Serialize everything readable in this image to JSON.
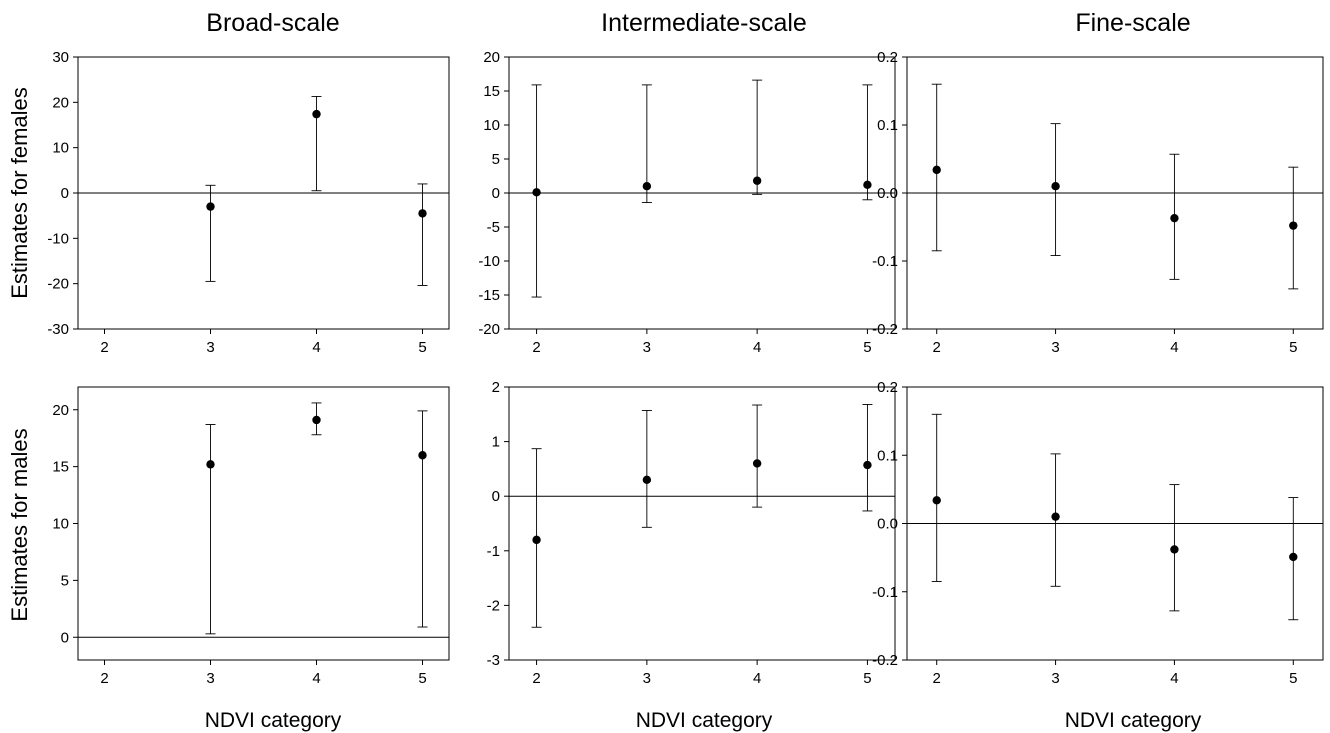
{
  "figure": {
    "column_titles": [
      "Broad-scale",
      "Intermediate-scale",
      "Fine-scale"
    ],
    "row_labels": [
      "Estimates for females",
      "Estimates for males"
    ],
    "x_axis_title": "NDVI category"
  },
  "chart_data": [
    {
      "type": "scatter",
      "title": "Broad-scale",
      "xlabel": "",
      "ylabel": "Estimates for females",
      "xlim": [
        1.75,
        5.25
      ],
      "ylim": [
        -30,
        30
      ],
      "xticks": [
        2,
        3,
        4,
        5
      ],
      "yticks": [
        -30,
        -20,
        -10,
        0,
        10,
        20,
        30
      ],
      "reference_line": 0,
      "grid": false,
      "points": [
        {
          "x": 3,
          "y": -3.0,
          "lower": -19.5,
          "upper": 1.7
        },
        {
          "x": 4,
          "y": 17.4,
          "lower": 0.5,
          "upper": 21.3
        },
        {
          "x": 5,
          "y": -4.5,
          "lower": -20.4,
          "upper": 2.0
        }
      ]
    },
    {
      "type": "scatter",
      "title": "Intermediate-scale",
      "xlabel": "",
      "ylabel": "",
      "xlim": [
        1.75,
        5.25
      ],
      "ylim": [
        -20,
        20
      ],
      "xticks": [
        2,
        3,
        4,
        5
      ],
      "yticks": [
        -20,
        -15,
        -10,
        -5,
        0,
        5,
        10,
        15,
        20
      ],
      "reference_line": 0,
      "grid": false,
      "points": [
        {
          "x": 2,
          "y": 0.1,
          "lower": -15.3,
          "upper": 15.9
        },
        {
          "x": 3,
          "y": 1.0,
          "lower": -1.4,
          "upper": 15.9
        },
        {
          "x": 4,
          "y": 1.8,
          "lower": -0.2,
          "upper": 16.6
        },
        {
          "x": 5,
          "y": 1.2,
          "lower": -1.0,
          "upper": 15.9
        }
      ]
    },
    {
      "type": "scatter",
      "title": "Fine-scale",
      "xlabel": "",
      "ylabel": "",
      "xlim": [
        1.75,
        5.25
      ],
      "ylim": [
        -0.2,
        0.2
      ],
      "xticks": [
        2,
        3,
        4,
        5
      ],
      "yticks": [
        "-0.2",
        "-0.1",
        "0.0",
        "0.1",
        "0.2"
      ],
      "reference_line": 0,
      "grid": false,
      "points": [
        {
          "x": 2,
          "y": 0.034,
          "lower": -0.085,
          "upper": 0.16
        },
        {
          "x": 3,
          "y": 0.01,
          "lower": -0.092,
          "upper": 0.102
        },
        {
          "x": 4,
          "y": -0.037,
          "lower": -0.127,
          "upper": 0.057
        },
        {
          "x": 5,
          "y": -0.048,
          "lower": -0.141,
          "upper": 0.038
        }
      ]
    },
    {
      "type": "scatter",
      "title": "",
      "xlabel": "NDVI category",
      "ylabel": "Estimates for males",
      "xlim": [
        1.75,
        5.25
      ],
      "ylim": [
        -2,
        22
      ],
      "xticks": [
        2,
        3,
        4,
        5
      ],
      "yticks": [
        0,
        5,
        10,
        15,
        20
      ],
      "reference_line": 0,
      "grid": false,
      "points": [
        {
          "x": 3,
          "y": 15.2,
          "lower": 0.3,
          "upper": 18.7
        },
        {
          "x": 4,
          "y": 19.1,
          "lower": 17.8,
          "upper": 20.6
        },
        {
          "x": 5,
          "y": 16.0,
          "lower": 0.9,
          "upper": 19.9
        }
      ]
    },
    {
      "type": "scatter",
      "title": "",
      "xlabel": "NDVI category",
      "ylabel": "",
      "xlim": [
        1.75,
        5.25
      ],
      "ylim": [
        -3,
        2
      ],
      "xticks": [
        2,
        3,
        4,
        5
      ],
      "yticks": [
        -3,
        -2,
        -1,
        0,
        1,
        2
      ],
      "reference_line": 0,
      "grid": false,
      "points": [
        {
          "x": 2,
          "y": -0.8,
          "lower": -2.4,
          "upper": 0.87
        },
        {
          "x": 3,
          "y": 0.3,
          "lower": -0.57,
          "upper": 1.57
        },
        {
          "x": 4,
          "y": 0.6,
          "lower": -0.2,
          "upper": 1.67
        },
        {
          "x": 5,
          "y": 0.57,
          "lower": -0.27,
          "upper": 1.68
        }
      ]
    },
    {
      "type": "scatter",
      "title": "",
      "xlabel": "NDVI category",
      "ylabel": "",
      "xlim": [
        1.75,
        5.25
      ],
      "ylim": [
        -0.2,
        0.2
      ],
      "xticks": [
        2,
        3,
        4,
        5
      ],
      "yticks": [
        "-0.2",
        "-0.1",
        "0.0",
        "0.1",
        "0.2"
      ],
      "reference_line": 0,
      "grid": false,
      "points": [
        {
          "x": 2,
          "y": 0.034,
          "lower": -0.085,
          "upper": 0.16
        },
        {
          "x": 3,
          "y": 0.01,
          "lower": -0.092,
          "upper": 0.102
        },
        {
          "x": 4,
          "y": -0.038,
          "lower": -0.128,
          "upper": 0.057
        },
        {
          "x": 5,
          "y": -0.049,
          "lower": -0.141,
          "upper": 0.038
        }
      ]
    }
  ]
}
